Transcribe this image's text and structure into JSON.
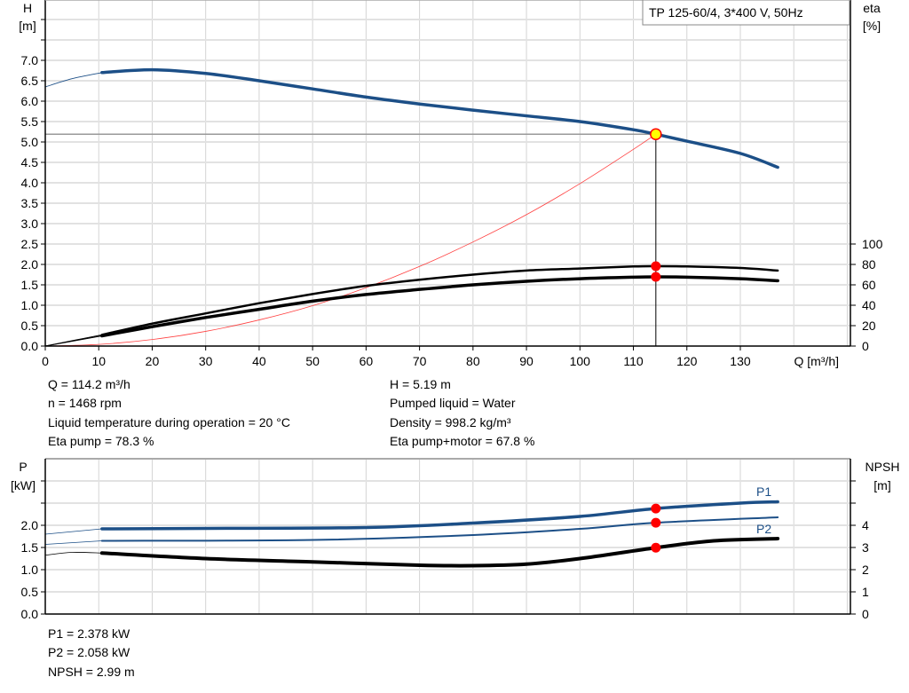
{
  "chart_data": [
    {
      "type": "line",
      "title": "TP 125-60/4, 3*400 V, 50Hz",
      "xlabel": "Q [m³/h]",
      "ylabel": "H\n[m]",
      "ylabel_line1": "H",
      "ylabel_line2": "[m]",
      "y2label_line1": "eta",
      "y2label_line2": "[%]",
      "xlim": [
        0,
        150
      ],
      "ylim": [
        0,
        8.5
      ],
      "y2lim": [
        0,
        100
      ],
      "xticks": [
        0,
        10,
        20,
        30,
        40,
        50,
        60,
        70,
        80,
        90,
        100,
        110,
        120,
        130
      ],
      "yticks": [
        "0.0",
        "0.5",
        "1.0",
        "1.5",
        "2.0",
        "2.5",
        "3.0",
        "3.5",
        "4.0",
        "4.5",
        "5.0",
        "5.5",
        "6.0",
        "6.5",
        "7.0"
      ],
      "y2ticks": [
        0,
        20,
        40,
        60,
        80,
        100
      ],
      "grid": true,
      "colors": {
        "head": "#1c4f87",
        "system": "#ff4040",
        "eta": "#000000",
        "point": "#ffff00",
        "marker": "#ff0000"
      },
      "series": [
        {
          "key": "head",
          "axis": "H",
          "x": [
            0,
            5,
            10.6,
            20,
            30,
            40,
            50,
            60,
            70,
            80,
            90,
            100,
            110,
            114.2,
            120,
            130,
            137
          ],
          "y": [
            6.35,
            6.55,
            6.7,
            6.77,
            6.68,
            6.5,
            6.3,
            6.1,
            5.93,
            5.78,
            5.64,
            5.5,
            5.3,
            5.19,
            5.02,
            4.72,
            4.38
          ]
        },
        {
          "key": "system",
          "axis": "H",
          "x": [
            0,
            10,
            20,
            30,
            40,
            50,
            60,
            70,
            80,
            90,
            100,
            110,
            114.2
          ],
          "y": [
            0,
            0.04,
            0.16,
            0.36,
            0.64,
            0.99,
            1.43,
            1.95,
            2.55,
            3.22,
            3.98,
            4.82,
            5.19
          ]
        },
        {
          "key": "eta_pump",
          "axis": "eta",
          "x": [
            0,
            10.6,
            20,
            30,
            40,
            50,
            60,
            70,
            80,
            90,
            100,
            110,
            114.2,
            120,
            130,
            137
          ],
          "y": [
            0,
            11,
            22,
            32,
            42,
            51,
            59,
            65,
            70,
            74,
            76,
            78,
            78.3,
            78,
            76.5,
            74
          ]
        },
        {
          "key": "eta_pump_motor",
          "axis": "eta",
          "x": [
            0,
            10.6,
            20,
            30,
            40,
            50,
            60,
            70,
            80,
            90,
            100,
            110,
            114.2,
            120,
            130,
            137
          ],
          "y": [
            0,
            10,
            19,
            28,
            36,
            44,
            50.5,
            55.5,
            60,
            63.5,
            66,
            67.5,
            67.8,
            67.5,
            66,
            64
          ]
        }
      ],
      "operating_point": {
        "Q": 114.2,
        "H": 5.19,
        "eta_pump": 78.3,
        "eta_pump_motor": 67.8
      }
    },
    {
      "type": "line",
      "ylabel_line1": "P",
      "ylabel_line2": "[kW]",
      "y2label_line1": "NPSH",
      "y2label_line2": "[m]",
      "xlim": [
        0,
        150
      ],
      "ylim": [
        0,
        3.5
      ],
      "y2lim": [
        0,
        7
      ],
      "yticks": [
        "0.0",
        "0.5",
        "1.0",
        "1.5",
        "2.0"
      ],
      "y2ticks": [
        0,
        1,
        2,
        3,
        4
      ],
      "grid": true,
      "series": [
        {
          "key": "P1",
          "name": "P1",
          "axis": "P",
          "x": [
            0,
            10.6,
            30,
            60,
            80,
            100,
            114.2,
            130,
            137
          ],
          "y": [
            1.8,
            1.92,
            1.93,
            1.95,
            2.05,
            2.2,
            2.378,
            2.5,
            2.53
          ]
        },
        {
          "key": "P2",
          "name": "P2",
          "axis": "P",
          "x": [
            0,
            10.6,
            50,
            80,
            100,
            114.2,
            137
          ],
          "y": [
            1.57,
            1.65,
            1.67,
            1.78,
            1.92,
            2.058,
            2.18
          ]
        },
        {
          "key": "NPSH",
          "axis": "NPSH",
          "x": [
            0,
            5,
            10.6,
            30,
            50,
            70,
            80,
            90,
            100,
            114.2,
            125,
            137
          ],
          "y": [
            2.65,
            2.78,
            2.75,
            2.5,
            2.35,
            2.2,
            2.18,
            2.25,
            2.5,
            2.99,
            3.3,
            3.4
          ]
        }
      ],
      "operating_point": {
        "Q": 114.2,
        "P1": 2.378,
        "P2": 2.058,
        "NPSH": 2.99
      }
    }
  ],
  "info": {
    "left": [
      "Q = 114.2 m³/h",
      "n = 1468 rpm",
      "Liquid temperature during operation = 20 °C",
      "Eta pump = 78.3 %"
    ],
    "right": [
      "H = 5.19 m",
      "Pumped liquid = Water",
      "Density = 998.2 kg/m³",
      "Eta pump+motor = 67.8 %"
    ],
    "bottom": [
      "P1 = 2.378 kW",
      "P2 = 2.058 kW",
      "NPSH = 2.99 m"
    ]
  }
}
